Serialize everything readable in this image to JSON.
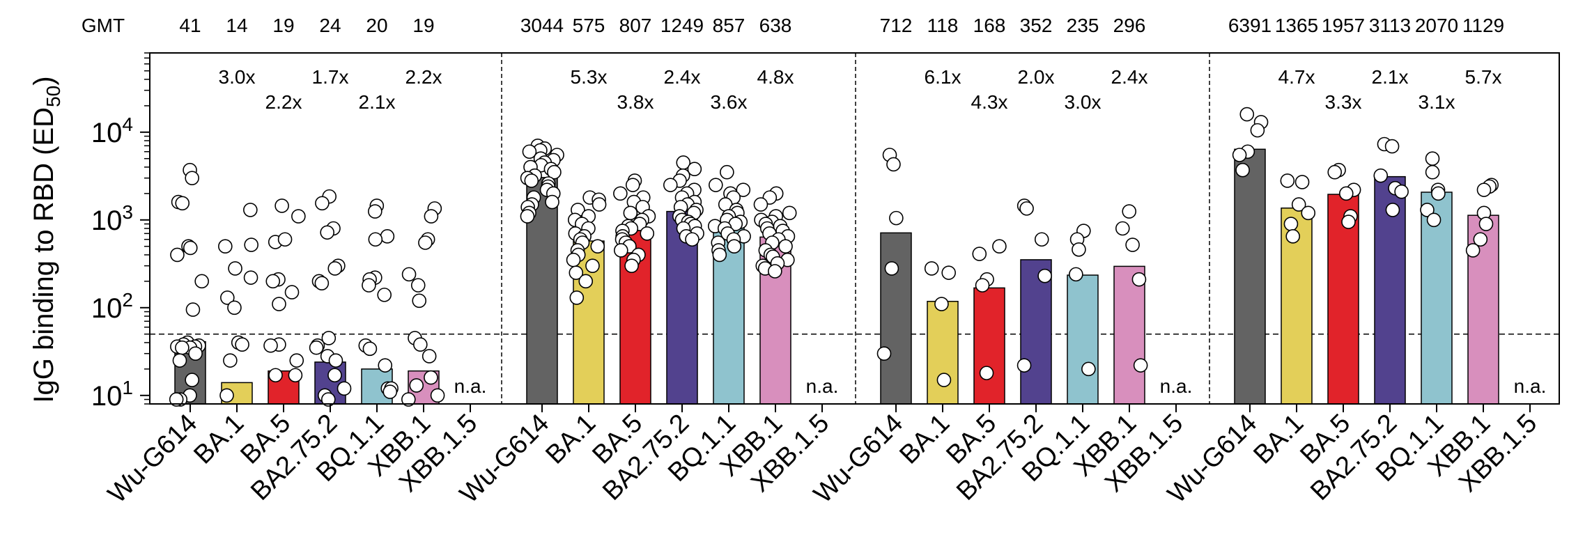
{
  "chart_data": {
    "type": "bar",
    "ylabel": "IgG binding to RBD (ED50)",
    "ylabel_parts": {
      "main": "IgG binding to RBD (ED",
      "sub": "50",
      "close": ")"
    },
    "yscale": "log",
    "ylim": [
      8,
      80000
    ],
    "yticks": [
      {
        "value": 10,
        "base": "10",
        "exp": "1"
      },
      {
        "value": 100,
        "base": "10",
        "exp": "2"
      },
      {
        "value": 1000,
        "base": "10",
        "exp": "3"
      },
      {
        "value": 10000,
        "base": "10",
        "exp": "4"
      }
    ],
    "threshold": 50,
    "gmt_label": "GMT",
    "na_label": "n.a.",
    "categories": [
      "Wu-G614",
      "BA.1",
      "BA.5",
      "BA2.75.2",
      "BQ.1.1",
      "XBB.1",
      "XBB.1.5"
    ],
    "colors": [
      "#636363",
      "#e3cf59",
      "#e1232a",
      "#52428e",
      "#8fc3ce",
      "#d88fbd",
      "#ffffff"
    ],
    "panels": [
      {
        "gmt": [
          "41",
          "14",
          "19",
          "24",
          "20",
          "19",
          ""
        ],
        "values": [
          41,
          14,
          19,
          24,
          20,
          19,
          null
        ],
        "folds": [
          {
            "text": "3.0x",
            "level": 1,
            "idx": 1
          },
          {
            "text": "2.2x",
            "level": 2,
            "idx": 2
          },
          {
            "text": "1.7x",
            "level": 1,
            "idx": 3
          },
          {
            "text": "2.1x",
            "level": 2,
            "idx": 4
          },
          {
            "text": "2.2x",
            "level": 1,
            "idx": 5
          }
        ],
        "points": [
          [
            3700,
            3000,
            1600,
            1550,
            500,
            480,
            400,
            200,
            95,
            40,
            38,
            37,
            36,
            36,
            35,
            35,
            30,
            25,
            15,
            10,
            9,
            9
          ],
          [
            1300,
            520,
            500,
            280,
            220,
            130,
            100,
            40,
            38,
            25,
            10
          ],
          [
            1100,
            1450,
            560,
            600,
            210,
            200,
            150,
            110,
            38,
            37,
            25,
            17,
            17
          ],
          [
            1850,
            1550,
            800,
            720,
            300,
            280,
            200,
            190,
            45,
            37,
            35,
            28,
            25,
            17,
            12,
            10,
            9
          ],
          [
            1450,
            1250,
            650,
            600,
            220,
            210,
            180,
            140,
            37,
            34,
            22,
            12,
            12,
            11
          ],
          [
            1350,
            1100,
            600,
            550,
            240,
            180,
            120,
            45,
            38,
            28,
            16,
            13,
            10,
            9
          ]
        ]
      },
      {
        "gmt": [
          "3044",
          "575",
          "807",
          "1249",
          "857",
          "638",
          ""
        ],
        "values": [
          3044,
          575,
          807,
          1249,
          857,
          638,
          null
        ],
        "folds": [
          {
            "text": "5.3x",
            "level": 1,
            "idx": 1
          },
          {
            "text": "3.8x",
            "level": 2,
            "idx": 2
          },
          {
            "text": "2.4x",
            "level": 1,
            "idx": 3
          },
          {
            "text": "3.6x",
            "level": 2,
            "idx": 4
          },
          {
            "text": "4.8x",
            "level": 1,
            "idx": 5
          }
        ],
        "points": [
          [
            7000,
            6500,
            6200,
            6000,
            5500,
            5000,
            4800,
            4500,
            4200,
            4000,
            3800,
            3500,
            3200,
            3000,
            2800,
            2600,
            2400,
            2200,
            2000,
            1800,
            1600,
            1500,
            1400,
            1200,
            1100
          ],
          [
            1800,
            1700,
            1500,
            1300,
            1100,
            1000,
            900,
            800,
            700,
            650,
            600,
            550,
            500,
            450,
            400,
            350,
            300,
            250,
            200,
            130
          ],
          [
            2800,
            2500,
            2000,
            1800,
            1600,
            1400,
            1200,
            1100,
            1000,
            900,
            850,
            800,
            750,
            700,
            650,
            600,
            550,
            500,
            450,
            400,
            350,
            300
          ],
          [
            4500,
            3800,
            3200,
            2800,
            2500,
            2200,
            2000,
            1800,
            1600,
            1500,
            1400,
            1300,
            1200,
            1100,
            1000,
            950,
            900,
            850,
            800,
            700,
            650,
            600
          ],
          [
            3500,
            2500,
            2200,
            2000,
            1800,
            1500,
            1300,
            1200,
            1100,
            1000,
            950,
            900,
            850,
            800,
            700,
            650,
            600,
            550,
            500,
            450,
            400
          ],
          [
            2000,
            1800,
            1500,
            1200,
            1100,
            1000,
            950,
            900,
            850,
            800,
            750,
            700,
            650,
            600,
            550,
            500,
            450,
            400,
            380,
            350,
            320,
            300,
            280,
            260
          ]
        ]
      },
      {
        "gmt": [
          "712",
          "118",
          "168",
          "352",
          "235",
          "296",
          ""
        ],
        "values": [
          712,
          118,
          168,
          352,
          235,
          296,
          null
        ],
        "folds": [
          {
            "text": "6.1x",
            "level": 1,
            "idx": 1
          },
          {
            "text": "4.3x",
            "level": 2,
            "idx": 2
          },
          {
            "text": "2.0x",
            "level": 1,
            "idx": 3
          },
          {
            "text": "3.0x",
            "level": 2,
            "idx": 4
          },
          {
            "text": "2.4x",
            "level": 1,
            "idx": 5
          }
        ],
        "points": [
          [
            5500,
            4300,
            1050,
            280,
            30
          ],
          [
            280,
            250,
            110,
            15
          ],
          [
            500,
            410,
            210,
            180,
            18
          ],
          [
            1450,
            1350,
            600,
            230,
            22
          ],
          [
            750,
            600,
            460,
            240,
            20
          ],
          [
            1250,
            800,
            520,
            210,
            22
          ]
        ]
      },
      {
        "gmt": [
          "6391",
          "1365",
          "1957",
          "3113",
          "2070",
          "1129",
          ""
        ],
        "values": [
          6391,
          1365,
          1957,
          3113,
          2070,
          1129,
          null
        ],
        "folds": [
          {
            "text": "4.7x",
            "level": 1,
            "idx": 1
          },
          {
            "text": "3.3x",
            "level": 2,
            "idx": 2
          },
          {
            "text": "2.1x",
            "level": 1,
            "idx": 3
          },
          {
            "text": "3.1x",
            "level": 2,
            "idx": 4
          },
          {
            "text": "5.7x",
            "level": 1,
            "idx": 5
          }
        ],
        "points": [
          [
            16000,
            13000,
            10500,
            6000,
            5500,
            3700
          ],
          [
            2800,
            2700,
            1500,
            1200,
            900,
            650
          ],
          [
            3700,
            3500,
            2200,
            2000,
            1100,
            950
          ],
          [
            7300,
            6900,
            3200,
            2300,
            2100,
            1300
          ],
          [
            5000,
            3500,
            2200,
            2000,
            1300,
            1000
          ],
          [
            2500,
            2400,
            2200,
            1200,
            900,
            600,
            450
          ]
        ]
      }
    ]
  }
}
